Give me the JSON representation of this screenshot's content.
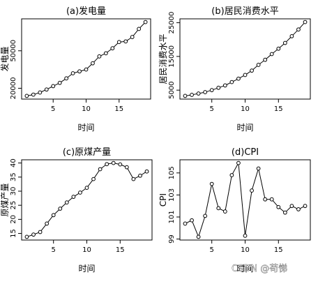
{
  "watermark": "CSDN @苟悌",
  "chart_data": [
    {
      "type": "line",
      "title": "(a)发电量",
      "xlabel": "时间",
      "ylabel": "发电量",
      "x": [
        1,
        2,
        3,
        4,
        5,
        6,
        7,
        8,
        9,
        10,
        11,
        12,
        13,
        14,
        15,
        16,
        17,
        18,
        19
      ],
      "values": [
        13900,
        14900,
        16600,
        19000,
        21700,
        24300,
        27900,
        32000,
        33500,
        35000,
        40000,
        45500,
        48000,
        52000,
        57000,
        57500,
        61000,
        67500,
        73000
      ],
      "xlim": [
        1,
        19
      ],
      "ylim": [
        13900,
        73000
      ],
      "xticks": [
        "5",
        "10",
        "15"
      ],
      "yticks": [
        "20000",
        "50000"
      ],
      "grid": false,
      "point_style": "open-circle"
    },
    {
      "type": "line",
      "title": "(b)居民消费水平",
      "xlabel": "时间",
      "ylabel": "居民消费水平",
      "x": [
        1,
        2,
        3,
        4,
        5,
        6,
        7,
        8,
        9,
        10,
        11,
        12,
        13,
        14,
        15,
        16,
        17,
        18,
        19
      ],
      "values": [
        3300,
        3600,
        4000,
        4400,
        5000,
        5700,
        6400,
        7400,
        8400,
        9500,
        10800,
        12500,
        14000,
        15700,
        17300,
        19000,
        21000,
        23000,
        25200
      ],
      "xlim": [
        1,
        19
      ],
      "ylim": [
        3300,
        25200
      ],
      "xticks": [
        "5",
        "10",
        "15"
      ],
      "yticks": [
        "5000",
        "15000",
        "25000"
      ],
      "grid": false,
      "point_style": "open-circle"
    },
    {
      "type": "line",
      "title": "(c)原煤产量",
      "xlabel": "时间",
      "ylabel": "原煤产量",
      "x": [
        1,
        2,
        3,
        4,
        5,
        6,
        7,
        8,
        9,
        10,
        11,
        12,
        13,
        14,
        15,
        16,
        17,
        18,
        19
      ],
      "values": [
        13.8,
        14.6,
        15.5,
        18.5,
        21.5,
        23.8,
        26,
        28,
        29.5,
        31.2,
        34.3,
        37.8,
        39.6,
        40,
        39.5,
        38.5,
        34.3,
        35.5,
        37
      ],
      "xlim": [
        1,
        19
      ],
      "ylim": [
        13.8,
        40
      ],
      "xticks": [
        "5",
        "10",
        "15"
      ],
      "yticks": [
        "15",
        "20",
        "25",
        "30",
        "35",
        "40"
      ],
      "grid": false,
      "point_style": "open-circle"
    },
    {
      "type": "line",
      "title": "(d)CPI",
      "xlabel": "时间",
      "ylabel": "CPI",
      "x": [
        1,
        2,
        3,
        4,
        5,
        6,
        7,
        8,
        9,
        10,
        11,
        12,
        13,
        14,
        15,
        16,
        17,
        18,
        19
      ],
      "values": [
        100.4,
        100.7,
        99.2,
        101.1,
        104,
        101.8,
        101.5,
        104.8,
        105.9,
        99.3,
        103.4,
        105.4,
        102.6,
        102.6,
        101.9,
        101.4,
        102,
        101.7,
        102
      ],
      "xlim": [
        1,
        19
      ],
      "ylim": [
        99.2,
        105.9
      ],
      "xticks": [
        "5",
        "10",
        "15"
      ],
      "yticks": [
        "99",
        "101",
        "103",
        "105"
      ],
      "grid": false,
      "point_style": "open-circle"
    }
  ]
}
